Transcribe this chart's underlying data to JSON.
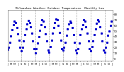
{
  "title": "Milwaukee Weather Outdoor Temperature  Monthly Low",
  "line_color": "#0000cc",
  "bg_color": "#ffffff",
  "grid_color": "#999999",
  "text_color": "#000000",
  "ylabel_right_values": [
    80,
    70,
    60,
    50,
    40,
    30,
    20,
    10,
    0
  ],
  "ylim": [
    -5,
    88
  ],
  "xlim": [
    0,
    91
  ],
  "marker": "s",
  "markersize": 1.2,
  "monthly_lows": [
    16,
    20,
    29,
    40,
    51,
    61,
    67,
    65,
    56,
    44,
    32,
    19,
    13,
    19,
    31,
    43,
    53,
    62,
    68,
    65,
    57,
    45,
    31,
    17,
    9,
    17,
    27,
    39,
    50,
    61,
    69,
    67,
    57,
    44,
    31,
    15,
    11,
    21,
    33,
    45,
    55,
    64,
    71,
    69,
    59,
    46,
    33,
    17,
    15,
    19,
    29,
    41,
    53,
    62,
    67,
    65,
    55,
    43,
    29,
    14,
    9,
    17,
    27,
    43,
    53,
    61,
    69,
    67,
    57,
    45,
    31,
    17,
    13,
    21,
    31,
    43,
    53,
    63,
    69,
    67,
    57,
    45,
    31,
    15,
    11,
    19,
    29,
    41,
    49,
    59,
    67
  ],
  "num_points": 91,
  "vline_positions": [
    12,
    24,
    36,
    48,
    60,
    72,
    84
  ],
  "xtick_positions": [
    0,
    3,
    6,
    9,
    12,
    15,
    18,
    21,
    24,
    27,
    30,
    33,
    36,
    39,
    42,
    45,
    48,
    51,
    54,
    57,
    60,
    63,
    66,
    69,
    72,
    75,
    78,
    81,
    84,
    87,
    90
  ],
  "xtick_labels": [
    "J",
    "M",
    "M",
    "J",
    "S",
    "N",
    "J",
    "M",
    "M",
    "J",
    "S",
    "N",
    "J",
    "M",
    "M",
    "J",
    "S",
    "N",
    "J",
    "M",
    "M",
    "J",
    "S",
    "N",
    "J",
    "M",
    "M",
    "J",
    "S",
    "N",
    "J"
  ]
}
